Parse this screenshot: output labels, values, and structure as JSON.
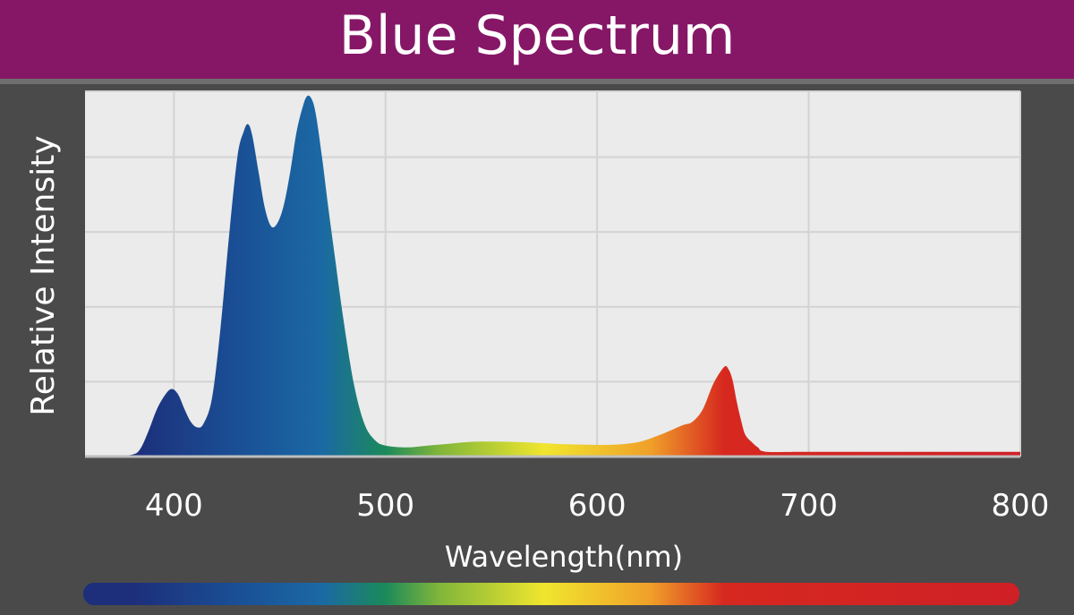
{
  "colors": {
    "title_bar": "#861767",
    "background": "#4a4a4a",
    "plot_area": "#ebebeb",
    "grid": "#d3d3d3",
    "gradient": [
      {
        "nm": 380,
        "color": "#1d2e7a"
      },
      {
        "nm": 430,
        "color": "#1a4f95"
      },
      {
        "nm": 470,
        "color": "#1b69a4"
      },
      {
        "nm": 500,
        "color": "#1b8a5a"
      },
      {
        "nm": 525,
        "color": "#7fb53a"
      },
      {
        "nm": 575,
        "color": "#f0e62e"
      },
      {
        "nm": 625,
        "color": "#f0a029"
      },
      {
        "nm": 660,
        "color": "#d6281f"
      },
      {
        "nm": 800,
        "color": "#cf2027"
      }
    ]
  },
  "chart_data": {
    "type": "area",
    "title": "Blue Spectrum",
    "xlabel": "Wavelength(nm)",
    "ylabel": "Relative Intensity",
    "xlim": [
      358,
      800
    ],
    "ylim": [
      0,
      100
    ],
    "xticks": [
      400,
      500,
      600,
      700,
      800
    ],
    "xtick_labels": [
      "400",
      "500",
      "600",
      "700",
      "800"
    ],
    "yticks": [
      0,
      20.5,
      41,
      61.5,
      82,
      100
    ],
    "grid": true,
    "series": [
      {
        "x": [
          358,
          370,
          380,
          384,
          388,
          392,
          396,
          399,
          402,
          405,
          408,
          411,
          414,
          418,
          422,
          426,
          430,
          433,
          435,
          437,
          440,
          443,
          446,
          449,
          452,
          455,
          458,
          461,
          463,
          465,
          467,
          470,
          473,
          476,
          480,
          485,
          490,
          495,
          500,
          510,
          520,
          530,
          540,
          550,
          560,
          570,
          580,
          590,
          600,
          610,
          620,
          630,
          640,
          645,
          650,
          655,
          660,
          662,
          664,
          666,
          668,
          670,
          673,
          676,
          680,
          700,
          750,
          800
        ],
        "y": [
          0,
          0.2,
          0.5,
          2,
          7,
          13,
          17,
          18.5,
          17,
          13,
          9.5,
          8,
          9,
          16,
          35,
          60,
          82,
          89,
          91,
          88,
          78,
          68,
          63,
          64,
          69,
          78,
          89,
          96,
          98.7,
          98,
          94,
          82,
          68,
          55,
          38,
          20,
          9,
          4.5,
          3,
          2.5,
          3,
          3.5,
          4,
          4.1,
          4,
          3.8,
          3.5,
          3.3,
          3.2,
          3.3,
          4,
          6,
          8.5,
          9.5,
          13,
          20,
          24.5,
          24,
          21,
          15,
          10,
          6,
          4,
          2.5,
          1.3,
          1.3,
          1.3,
          1.3
        ]
      }
    ]
  }
}
